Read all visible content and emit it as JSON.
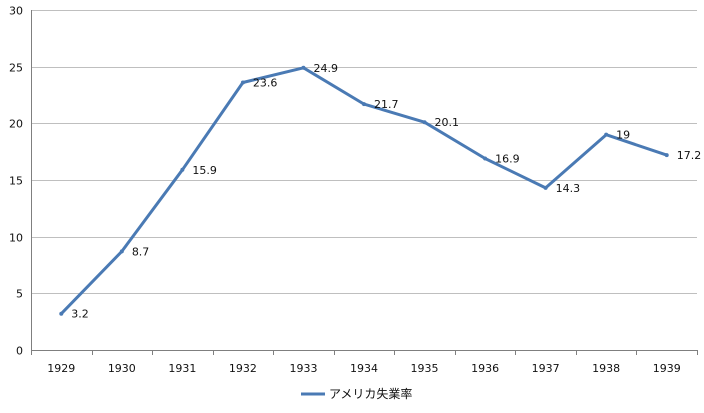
{
  "chart_data": {
    "type": "line",
    "title": "",
    "xlabel": "",
    "ylabel": "",
    "categories": [
      "1929",
      "1930",
      "1931",
      "1932",
      "1933",
      "1934",
      "1935",
      "1936",
      "1937",
      "1938",
      "1939"
    ],
    "series": [
      {
        "name": "アメリカ失業率",
        "values": [
          3.2,
          8.7,
          15.9,
          23.6,
          24.9,
          21.7,
          20.1,
          16.9,
          14.3,
          19,
          17.2
        ],
        "data_labels": [
          "3.2",
          "8.7",
          "15.9",
          "23.6",
          "24.9",
          "21.7",
          "20.1",
          "16.9",
          "14.3",
          "19",
          "17.2"
        ],
        "color": "#4a7ab4"
      }
    ],
    "ylim": [
      0,
      30
    ],
    "yticks": [
      0,
      5,
      10,
      15,
      20,
      25,
      30
    ],
    "ytick_labels": [
      "0",
      "5",
      "10",
      "15",
      "20",
      "25",
      "30"
    ],
    "grid": true,
    "legend": {
      "position": "bottom-center"
    },
    "colors": {
      "grid": "#bfbfbf",
      "axis": "#7f7f7f"
    }
  }
}
